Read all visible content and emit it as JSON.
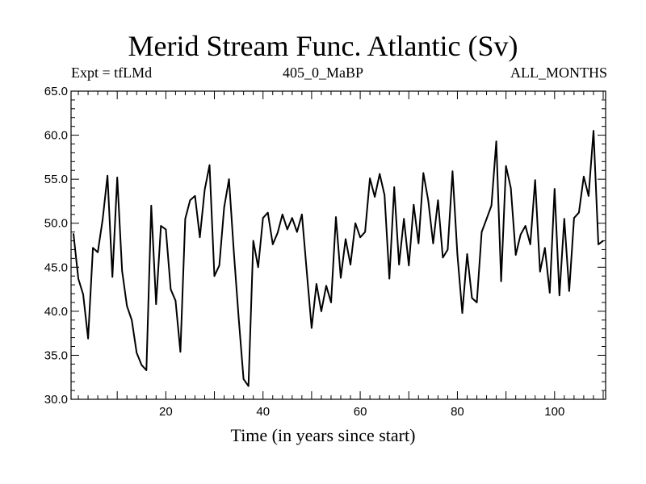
{
  "chart_data": {
    "type": "line",
    "title": "Merid Stream Func. Atlantic (Sv)",
    "subtitle_left": "Expt = tfLMd",
    "subtitle_center": "405_0_MaBP",
    "subtitle_right": "ALL_MONTHS",
    "xlabel": "Time (in years since start)",
    "ylabel": "",
    "xlim": [
      0.5,
      110.5
    ],
    "ylim": [
      30.0,
      65.0
    ],
    "x_ticks": [
      20,
      40,
      60,
      80,
      100
    ],
    "x_tick_labels": [
      "20",
      "40",
      "60",
      "80",
      "100"
    ],
    "y_ticks": [
      30,
      35,
      40,
      45,
      50,
      55,
      60,
      65
    ],
    "y_tick_labels": [
      "30.0",
      "35.0",
      "40.0",
      "45.0",
      "50.0",
      "55.0",
      "60.0",
      "65.0"
    ],
    "series": [
      {
        "name": "Merid Stream Func. Atlantic",
        "x": [
          1,
          2,
          3,
          4,
          5,
          6,
          7,
          8,
          9,
          10,
          11,
          12,
          13,
          14,
          15,
          16,
          17,
          18,
          19,
          20,
          21,
          22,
          23,
          24,
          25,
          26,
          27,
          28,
          29,
          30,
          31,
          32,
          33,
          34,
          35,
          36,
          37,
          38,
          39,
          40,
          41,
          42,
          43,
          44,
          45,
          46,
          47,
          48,
          49,
          50,
          51,
          52,
          53,
          54,
          55,
          56,
          57,
          58,
          59,
          60,
          61,
          62,
          63,
          64,
          65,
          66,
          67,
          68,
          69,
          70,
          71,
          72,
          73,
          74,
          75,
          76,
          77,
          78,
          79,
          80,
          81,
          82,
          83,
          84,
          85,
          86,
          87,
          88,
          89,
          90,
          91,
          92,
          93,
          94,
          95,
          96,
          97,
          98,
          99,
          100,
          101,
          102,
          103,
          104,
          105,
          106,
          107,
          108,
          109,
          110
        ],
        "values": [
          48.8,
          43.7,
          41.9,
          36.9,
          47.2,
          46.7,
          50.4,
          55.4,
          43.9,
          55.2,
          44.6,
          40.6,
          39.0,
          35.3,
          33.9,
          33.3,
          52.0,
          40.8,
          49.7,
          49.3,
          42.5,
          41.2,
          35.4,
          50.5,
          52.6,
          53.1,
          48.4,
          53.8,
          56.6,
          44.0,
          45.2,
          51.8,
          55.0,
          46.7,
          39.2,
          32.3,
          31.5,
          48.0,
          45.0,
          50.6,
          51.2,
          47.6,
          48.9,
          51.0,
          49.3,
          50.6,
          49.0,
          51.0,
          44.5,
          38.1,
          43.1,
          40.0,
          42.9,
          41.0,
          50.7,
          43.8,
          48.2,
          45.3,
          50.0,
          48.4,
          49.0,
          55.1,
          53.0,
          55.6,
          53.2,
          43.7,
          54.1,
          45.3,
          50.5,
          45.2,
          52.1,
          47.7,
          55.7,
          52.6,
          47.7,
          52.6,
          46.1,
          47.0,
          55.9,
          46.5,
          39.8,
          46.5,
          41.5,
          41.0,
          49.0,
          50.5,
          52.0,
          59.3,
          43.4,
          56.5,
          54.0,
          46.4,
          48.7,
          49.7,
          47.6,
          54.9,
          44.5,
          47.2,
          42.1,
          53.9,
          41.8,
          50.5,
          42.3,
          50.6,
          51.2,
          55.3,
          53.1,
          60.5,
          47.6,
          48.0
        ]
      }
    ],
    "grid": false,
    "line_color": "#000000"
  }
}
